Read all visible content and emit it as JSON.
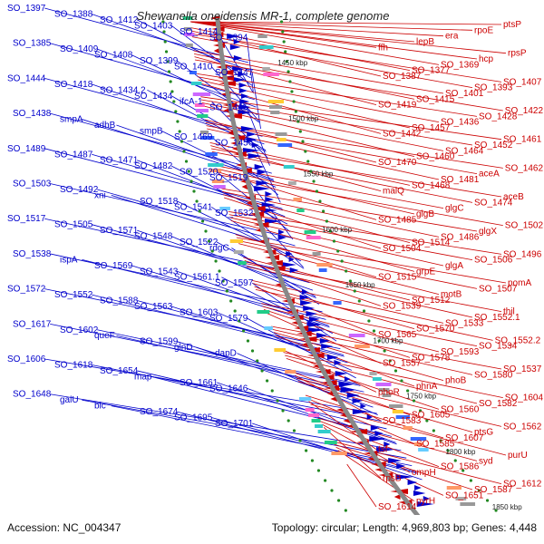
{
  "title": "Shewanella oneidensis MR-1, complete genome",
  "accession": "Accession: NC_004347",
  "topology": "Topology: circular; Length: 4,969,803 bp; Genes: 4,448",
  "colors": {
    "forward": "#0000cc",
    "reverse": "#cc0000",
    "backbone": "#888888",
    "tick_dot": "#228822"
  },
  "ticks": [
    "1450 kbp",
    "1500 kbp",
    "1550 kbp",
    "1600 kbp",
    "1650 kbp",
    "1700 kbp",
    "1750 kbp",
    "1800 kbp",
    "1850 kbp"
  ],
  "blue_labels": [
    "SO_1397",
    "SO_1388",
    "SO_1412",
    "SO_1403",
    "SO_1414",
    "SO_1394",
    "SO_1385",
    "SO_1409",
    "SO_1408",
    "SO_1399",
    "SO_1410",
    "SO_1447",
    "SO_1444",
    "SO_1418",
    "SO_1434.2",
    "SO_1434",
    "ifcA-1",
    "SO_1445",
    "SO_1438",
    "smpA",
    "adhB",
    "smpB",
    "SO_1469",
    "SO_1456",
    "SO_1489",
    "SO_1487",
    "SO_1471",
    "SO_1482",
    "SO_1520",
    "SO_1519",
    "SO_1503",
    "SO_1492",
    "xni",
    "SO_1518",
    "SO_1541",
    "SO_1532",
    "SO_1517",
    "SO_1505",
    "SO_1571",
    "SO_1548",
    "SO_1522",
    "rdgC",
    "SO_1538",
    "ispA",
    "SO_1569",
    "SO_1543",
    "SO_1561.1",
    "SO_1597",
    "SO_1572",
    "SO_1552",
    "SO_1588",
    "SO_1563",
    "SO_1603",
    "SO_1579",
    "SO_1617",
    "SO_1602",
    "queF",
    "SO_1599",
    "glnD",
    "dapD",
    "SO_1606",
    "SO_1618",
    "SO_1654",
    "map",
    "SO_1661",
    "SO_1646",
    "SO_1648",
    "galU",
    "blc",
    "SO_1674",
    "SO_1695",
    "SO_1701"
  ],
  "red_labels": [
    "ptsP",
    "rpoE",
    "era",
    "lepB",
    "ffh",
    "rpsP",
    "hcp",
    "SO_1369",
    "SO_1377",
    "SO_1387",
    "SO_1407",
    "SO_1393",
    "SO_1401",
    "SO_1415",
    "SO_1419",
    "SO_1422",
    "SO_1428",
    "SO_1436",
    "SO_1457",
    "SO_1442",
    "SO_1461",
    "SO_1452",
    "SO_1464",
    "SO_1460",
    "SO_1470",
    "SO_1462",
    "aceA",
    "SO_1481",
    "SO_1468",
    "malQ",
    "aceB",
    "SO_1474",
    "glgC",
    "glgB",
    "SO_1485",
    "SO_1502",
    "glgX",
    "SO_1486",
    "SO_1514",
    "SO_1504",
    "SO_1496",
    "SO_1506",
    "glgA",
    "grpE",
    "SO_1515",
    "pomA",
    "SO_1507",
    "motB",
    "SO_1512",
    "SO_1539",
    "thil",
    "SO_1552.1",
    "SO_1533",
    "SO_1570",
    "SO_1565",
    "SO_1552.2",
    "SO_1534",
    "SO_1593",
    "SO_1578",
    "SO_1557",
    "SO_1537",
    "SO_1580",
    "phoB",
    "phnA",
    "phoR",
    "SO_1604",
    "SO_1582",
    "SO_1560",
    "SO_1605",
    "SO_1583",
    "SO_1562",
    "ptsG",
    "SO_1607",
    "SO_1585",
    "tsf",
    "purU",
    "syd",
    "SO_1586",
    "ompH",
    "rpsB",
    "SO_1612",
    "SO_1587",
    "SO_1651",
    "pyrH",
    "SO_1614"
  ]
}
